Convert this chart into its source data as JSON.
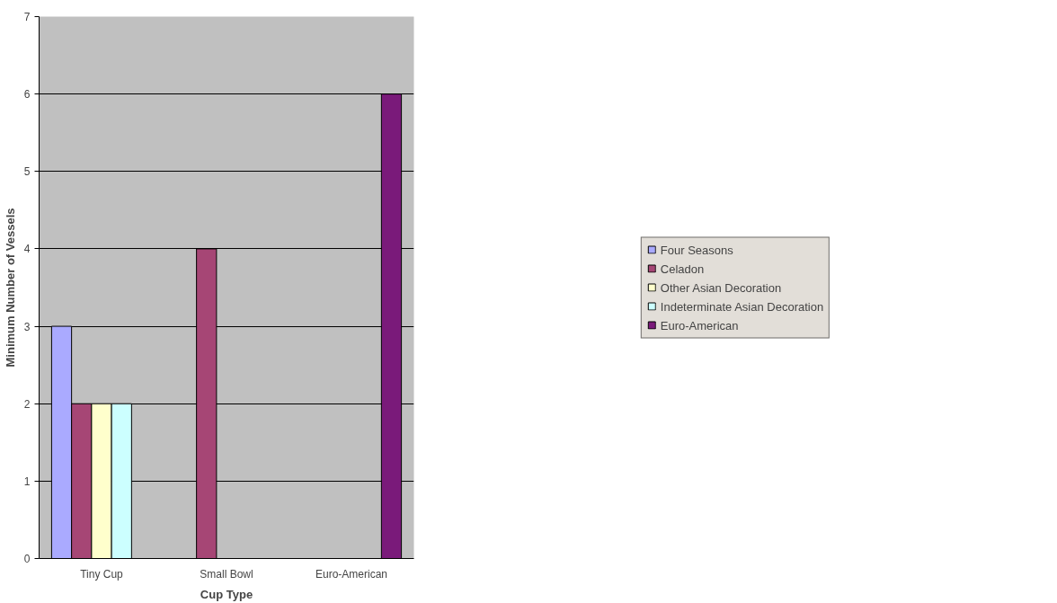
{
  "chart_data": {
    "type": "bar",
    "xlabel": "Cup Type",
    "ylabel": "Minimum Number of Vessels",
    "categories": [
      "Tiny Cup",
      "Small Bowl",
      "Euro-American"
    ],
    "series": [
      {
        "name": "Four Seasons",
        "color": "#aaaaff",
        "values": [
          3,
          null,
          null
        ]
      },
      {
        "name": "Celadon",
        "color": "#a64675",
        "values": [
          2,
          4,
          null
        ]
      },
      {
        "name": "Other Asian Decoration",
        "color": "#ffffcc",
        "values": [
          2,
          null,
          null
        ]
      },
      {
        "name": "Indeterminate Asian Decoration",
        "color": "#ccffff",
        "values": [
          2,
          null,
          null
        ]
      },
      {
        "name": "Euro-American",
        "color": "#7a1a7a",
        "values": [
          null,
          null,
          6
        ]
      }
    ],
    "ylim": [
      0,
      7
    ],
    "yticks": [
      0,
      1,
      2,
      3,
      4,
      5,
      6,
      7
    ],
    "grid": "y",
    "legend": "right"
  }
}
